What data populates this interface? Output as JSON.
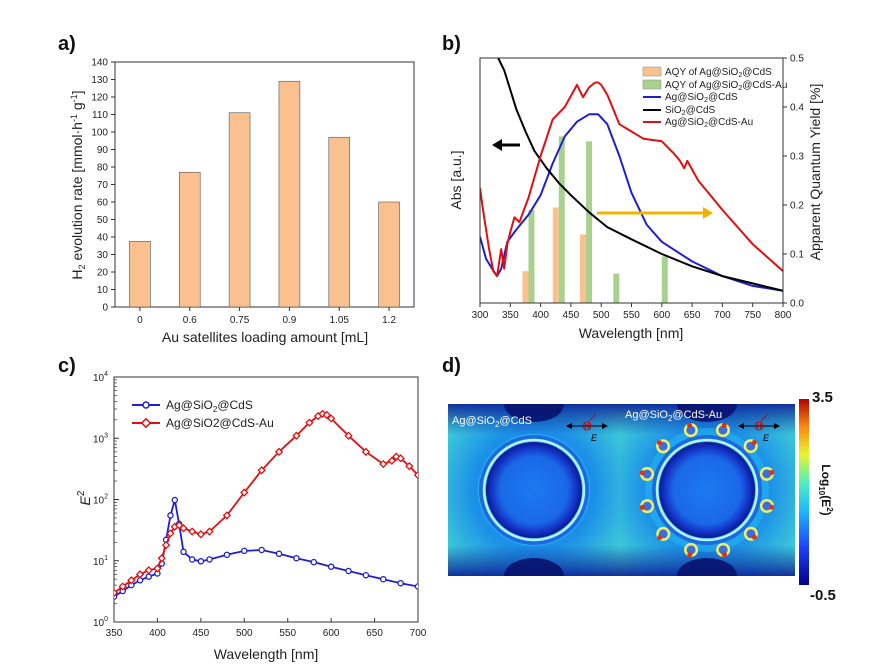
{
  "panels": {
    "a": "a)",
    "b": "b)",
    "c": "c)",
    "d": "d)"
  },
  "chart_data": [
    {
      "panel": "a",
      "type": "bar",
      "xlabel": "Au satellites loading amount [mL]",
      "ylabel": "H2 evolution rate [mmol·h-1 g-1]",
      "categories": [
        "0",
        "0.6",
        "0.75",
        "0.9",
        "1.05",
        "1.2"
      ],
      "values": [
        37.5,
        77,
        111,
        129,
        97,
        60
      ],
      "ylim": [
        0,
        140
      ],
      "yticks": [
        0,
        10,
        20,
        30,
        40,
        50,
        60,
        70,
        80,
        90,
        100,
        110,
        120,
        130,
        140
      ],
      "bar_color": "#fac090",
      "bar_edge": "#555555"
    },
    {
      "panel": "b",
      "type": "line",
      "xlabel": "Wavelength [nm]",
      "ylabel": "Abs [a.u.]",
      "y2label": "Apparent Quantum Yield [%]",
      "xlim": [
        300,
        800
      ],
      "xticks": [
        300,
        350,
        400,
        450,
        500,
        550,
        600,
        650,
        700,
        750,
        800
      ],
      "ylim": [
        0,
        1
      ],
      "y2lim": [
        0,
        0.5
      ],
      "y2ticks": [
        "0.0",
        "0.1",
        "0.2",
        "0.3",
        "0.4",
        "0.5"
      ],
      "legend": [
        {
          "label": "AQY of Ag@SiO2@CdS",
          "kind": "bar",
          "color": "#fac090"
        },
        {
          "label": "AQY of Ag@SiO2@CdS-Au",
          "kind": "bar",
          "color": "#a9d18e"
        },
        {
          "label": "Ag@SiO2@CdS",
          "kind": "line",
          "color": "#1f1fd0"
        },
        {
          "label": "SiO2@CdS",
          "kind": "line",
          "color": "#000000"
        },
        {
          "label": "Ag@SiO2@CdS-Au",
          "kind": "line",
          "color": "#e01010"
        }
      ],
      "series": [
        {
          "name": "Ag@SiO2@CdS",
          "color": "#1f1fd0",
          "x": [
            300,
            310,
            320,
            328,
            335,
            345,
            360,
            380,
            400,
            420,
            440,
            460,
            480,
            495,
            510,
            530,
            550,
            575,
            600,
            650,
            700,
            750,
            800
          ],
          "y": [
            0.27,
            0.18,
            0.14,
            0.11,
            0.14,
            0.25,
            0.3,
            0.36,
            0.44,
            0.57,
            0.68,
            0.74,
            0.77,
            0.77,
            0.73,
            0.6,
            0.45,
            0.32,
            0.25,
            0.17,
            0.11,
            0.07,
            0.05
          ]
        },
        {
          "name": "SiO2@CdS",
          "color": "#000000",
          "x": [
            330,
            340,
            350,
            360,
            375,
            390,
            410,
            430,
            450,
            480,
            510,
            550,
            600,
            650,
            700,
            750,
            800
          ],
          "y": [
            1.0,
            0.95,
            0.87,
            0.79,
            0.7,
            0.62,
            0.55,
            0.49,
            0.44,
            0.37,
            0.31,
            0.26,
            0.2,
            0.15,
            0.11,
            0.08,
            0.05
          ]
        },
        {
          "name": "Ag@SiO2@CdS-Au",
          "color": "#e01010",
          "x": [
            300,
            305,
            315,
            322,
            328,
            335,
            340,
            345,
            350,
            357,
            365,
            380,
            400,
            420,
            440,
            460,
            470,
            480,
            490,
            495,
            500,
            510,
            520,
            530,
            550,
            570,
            600,
            620,
            630,
            637,
            642,
            660,
            700,
            750,
            800
          ],
          "y": [
            0.47,
            0.38,
            0.22,
            0.13,
            0.11,
            0.22,
            0.14,
            0.24,
            0.29,
            0.35,
            0.33,
            0.43,
            0.6,
            0.75,
            0.8,
            0.89,
            0.84,
            0.88,
            0.9,
            0.9,
            0.89,
            0.85,
            0.79,
            0.73,
            0.7,
            0.67,
            0.66,
            0.61,
            0.58,
            0.55,
            0.58,
            0.5,
            0.38,
            0.24,
            0.13
          ]
        }
      ],
      "aqy_bars": [
        {
          "name": "AQY of Ag@SiO2@CdS",
          "color": "#fac090",
          "x": [
            380,
            430,
            475
          ],
          "values": [
            0.065,
            0.195,
            0.14
          ]
        },
        {
          "name": "AQY of Ag@SiO2@CdS-Au",
          "color": "#a9d18e",
          "x": [
            380,
            430,
            475,
            520,
            600
          ],
          "values": [
            0.19,
            0.34,
            0.33,
            0.06,
            0.095
          ]
        }
      ]
    },
    {
      "panel": "c",
      "type": "line",
      "xlabel": "Wavelength [nm]",
      "ylabel": "E2",
      "y_scale": "log",
      "xlim": [
        350,
        700
      ],
      "xticks": [
        350,
        400,
        450,
        500,
        550,
        600,
        650,
        700
      ],
      "ylim": [
        1,
        10000
      ],
      "yticks": [
        "100",
        "101",
        "102",
        "103",
        "104"
      ],
      "legend_position": "top-left",
      "series": [
        {
          "name": "Ag@SiO2@CdS",
          "color": "#1f1fd0",
          "marker": "circle",
          "x": [
            350,
            360,
            370,
            380,
            390,
            400,
            405,
            410,
            415,
            420,
            425,
            430,
            440,
            450,
            460,
            480,
            500,
            520,
            540,
            560,
            580,
            600,
            620,
            640,
            660,
            680,
            700
          ],
          "y": [
            2.6,
            3.2,
            4.0,
            4.8,
            5.5,
            6.2,
            9.0,
            22,
            55,
            98,
            40,
            14,
            10.5,
            9.8,
            10.5,
            12.5,
            14.5,
            15,
            13,
            11,
            9.5,
            8,
            6.8,
            5.8,
            5,
            4.3,
            3.8
          ]
        },
        {
          "name": "Ag@SiO2@CdS-Au",
          "color": "#e01010",
          "marker": "diamond",
          "x": [
            350,
            360,
            370,
            380,
            390,
            400,
            405,
            410,
            415,
            420,
            425,
            430,
            440,
            450,
            460,
            480,
            500,
            520,
            540,
            560,
            575,
            585,
            590,
            595,
            600,
            620,
            640,
            660,
            670,
            675,
            680,
            690,
            700
          ],
          "y": [
            3.0,
            3.8,
            4.8,
            6.0,
            7.0,
            7.5,
            11,
            18,
            28,
            36,
            38,
            34,
            30,
            27,
            30,
            55,
            130,
            300,
            600,
            1100,
            1800,
            2300,
            2500,
            2400,
            2100,
            1100,
            600,
            380,
            430,
            500,
            470,
            350,
            250
          ]
        }
      ]
    },
    {
      "panel": "d",
      "type": "heatmap",
      "maps": [
        {
          "label": "Ag@SiO2@CdS",
          "polarization_label": "E"
        },
        {
          "label": "Ag@SiO2@CdS-Au",
          "polarization_label": "E"
        }
      ],
      "colorbar": {
        "max": "3.5",
        "min": "-0.5",
        "label": "Log10(E2)"
      }
    }
  ]
}
